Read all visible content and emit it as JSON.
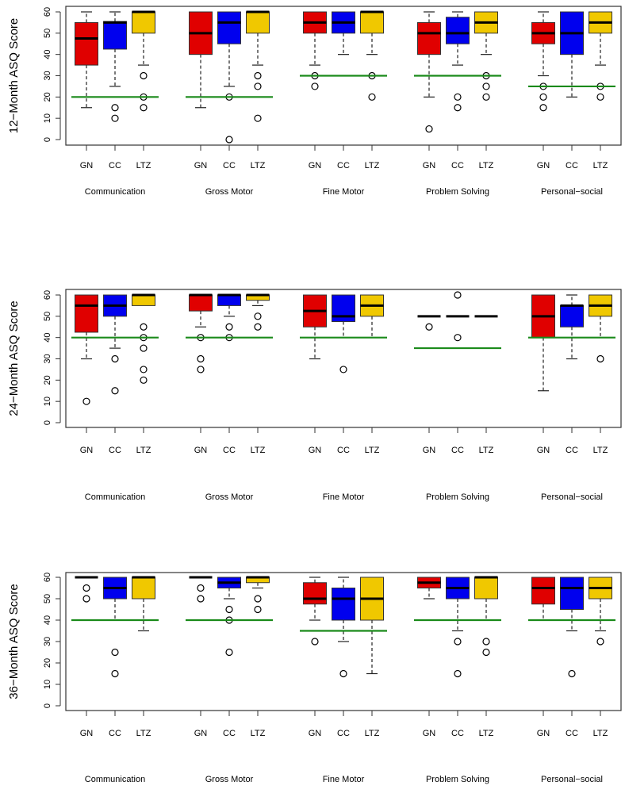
{
  "chart_data": [
    {
      "type": "box",
      "ylabel": "12−Month ASQ Score",
      "ylim": [
        0,
        60
      ],
      "yticks": [
        "0",
        "10",
        "20",
        "30",
        "40",
        "50",
        "60"
      ],
      "groups": [
        "Communication",
        "Gross Motor",
        "Fine Motor",
        "Problem Solving",
        "Personal−social"
      ],
      "subgroups": [
        "GN",
        "CC",
        "LTZ"
      ],
      "colors": [
        "#e00000",
        "#0000ee",
        "#f0c800"
      ],
      "threshold_color": "#1a8a1a",
      "thresholds": [
        20,
        20,
        30,
        30,
        25
      ],
      "boxes": [
        [
          {
            "stats": [
              15,
              35,
              47.5,
              55,
              60
            ],
            "out": []
          },
          {
            "stats": [
              25,
              42.5,
              55,
              55.5,
              60
            ],
            "out": [
              15,
              10
            ]
          },
          {
            "stats": [
              35,
              50,
              60,
              60,
              60
            ],
            "out": [
              30,
              20,
              15
            ]
          }
        ],
        [
          {
            "stats": [
              15,
              40,
              50,
              60,
              60
            ],
            "out": []
          },
          {
            "stats": [
              25,
              45,
              55,
              60,
              60
            ],
            "out": [
              20,
              0
            ]
          },
          {
            "stats": [
              35,
              50,
              60,
              60,
              60
            ],
            "out": [
              30,
              25,
              10
            ]
          }
        ],
        [
          {
            "stats": [
              35,
              50,
              55,
              60,
              60
            ],
            "out": [
              30,
              25
            ]
          },
          {
            "stats": [
              40,
              50,
              55,
              60,
              60
            ],
            "out": []
          },
          {
            "stats": [
              40,
              50,
              60,
              60,
              60
            ],
            "out": [
              30,
              20
            ]
          }
        ],
        [
          {
            "stats": [
              20,
              40,
              50,
              55,
              60
            ],
            "out": [
              5
            ]
          },
          {
            "stats": [
              35,
              45,
              50,
              57.5,
              60
            ],
            "out": [
              20,
              15
            ]
          },
          {
            "stats": [
              40,
              50,
              55,
              60,
              60
            ],
            "out": [
              30,
              25,
              20
            ]
          }
        ],
        [
          {
            "stats": [
              30,
              45,
              50,
              55,
              60
            ],
            "out": [
              25,
              20,
              15
            ]
          },
          {
            "stats": [
              20,
              40,
              50,
              60,
              60
            ],
            "out": []
          },
          {
            "stats": [
              35,
              50,
              55,
              60,
              60
            ],
            "out": [
              25,
              20
            ]
          }
        ]
      ]
    },
    {
      "type": "box",
      "ylabel": "24−Month ASQ Score",
      "ylim": [
        0,
        60
      ],
      "yticks": [
        "0",
        "10",
        "20",
        "30",
        "40",
        "50",
        "60"
      ],
      "groups": [
        "Communication",
        "Gross Motor",
        "Fine Motor",
        "Problem Solving",
        "Personal−social"
      ],
      "subgroups": [
        "GN",
        "CC",
        "LTZ"
      ],
      "colors": [
        "#e00000",
        "#0000ee",
        "#f0c800"
      ],
      "threshold_color": "#1a8a1a",
      "thresholds": [
        40,
        40,
        40,
        35,
        40
      ],
      "boxes": [
        [
          {
            "stats": [
              30,
              42.5,
              55,
              60,
              60
            ],
            "out": [
              10
            ]
          },
          {
            "stats": [
              35,
              50,
              55,
              60,
              60
            ],
            "out": [
              30,
              15
            ]
          },
          {
            "stats": [
              55,
              55,
              60,
              60,
              60
            ],
            "out": [
              45,
              40,
              35,
              25,
              20
            ]
          }
        ],
        [
          {
            "stats": [
              45,
              52.5,
              60,
              60,
              60
            ],
            "out": [
              40,
              30,
              25
            ]
          },
          {
            "stats": [
              50,
              55,
              60,
              60,
              60
            ],
            "out": [
              45,
              40
            ]
          },
          {
            "stats": [
              55,
              57.5,
              60,
              60,
              60
            ],
            "out": [
              50,
              45
            ]
          }
        ],
        [
          {
            "stats": [
              30,
              45,
              52.5,
              60,
              60
            ],
            "out": []
          },
          {
            "stats": [
              40,
              47.5,
              50,
              60,
              60
            ],
            "out": [
              25
            ]
          },
          {
            "stats": [
              40,
              50,
              55,
              60,
              60
            ],
            "out": []
          }
        ],
        [
          {
            "stats": [
              50,
              50,
              50,
              50,
              50
            ],
            "out": [
              45
            ]
          },
          {
            "stats": [
              50,
              50,
              50,
              50,
              50
            ],
            "out": [
              60,
              40
            ]
          },
          {
            "stats": [
              50,
              50,
              50,
              50,
              50
            ],
            "out": []
          }
        ],
        [
          {
            "stats": [
              15,
              40,
              50,
              60,
              60
            ],
            "out": []
          },
          {
            "stats": [
              30,
              45,
              55,
              55,
              60
            ],
            "out": []
          },
          {
            "stats": [
              40,
              50,
              55,
              60,
              60
            ],
            "out": [
              30
            ]
          }
        ]
      ]
    },
    {
      "type": "box",
      "ylabel": "36−Month ASQ Score",
      "ylim": [
        0,
        60
      ],
      "yticks": [
        "0",
        "10",
        "20",
        "30",
        "40",
        "50",
        "60"
      ],
      "groups": [
        "Communication",
        "Gross Motor",
        "Fine Motor",
        "Problem Solving",
        "Personal−social"
      ],
      "subgroups": [
        "GN",
        "CC",
        "LTZ"
      ],
      "colors": [
        "#e00000",
        "#0000ee",
        "#f0c800"
      ],
      "threshold_color": "#1a8a1a",
      "thresholds": [
        40,
        40,
        35,
        40,
        40
      ],
      "boxes": [
        [
          {
            "stats": [
              60,
              60,
              60,
              60,
              60
            ],
            "out": [
              55,
              50
            ]
          },
          {
            "stats": [
              40,
              50,
              55,
              60,
              60
            ],
            "out": [
              25,
              15
            ]
          },
          {
            "stats": [
              35,
              50,
              60,
              60,
              60
            ],
            "out": []
          }
        ],
        [
          {
            "stats": [
              60,
              60,
              60,
              60,
              60
            ],
            "out": [
              55,
              50
            ]
          },
          {
            "stats": [
              50,
              55,
              57.5,
              60,
              60
            ],
            "out": [
              45,
              40,
              25
            ]
          },
          {
            "stats": [
              55,
              57.5,
              60,
              60,
              60
            ],
            "out": [
              50,
              45
            ]
          }
        ],
        [
          {
            "stats": [
              40,
              47.5,
              50,
              57.5,
              60
            ],
            "out": [
              30
            ]
          },
          {
            "stats": [
              30,
              40,
              50,
              55,
              60
            ],
            "out": [
              15
            ]
          },
          {
            "stats": [
              15,
              40,
              50,
              60,
              60
            ],
            "out": []
          }
        ],
        [
          {
            "stats": [
              50,
              55,
              57.5,
              60,
              60
            ],
            "out": []
          },
          {
            "stats": [
              35,
              50,
              55,
              60,
              60
            ],
            "out": [
              30,
              15
            ]
          },
          {
            "stats": [
              40,
              50,
              60,
              60,
              60
            ],
            "out": [
              30,
              25
            ]
          }
        ],
        [
          {
            "stats": [
              40,
              47.5,
              55,
              60,
              60
            ],
            "out": []
          },
          {
            "stats": [
              35,
              45,
              55,
              60,
              60
            ],
            "out": [
              15
            ]
          },
          {
            "stats": [
              35,
              50,
              55,
              60,
              60
            ],
            "out": [
              30
            ]
          }
        ]
      ]
    }
  ]
}
